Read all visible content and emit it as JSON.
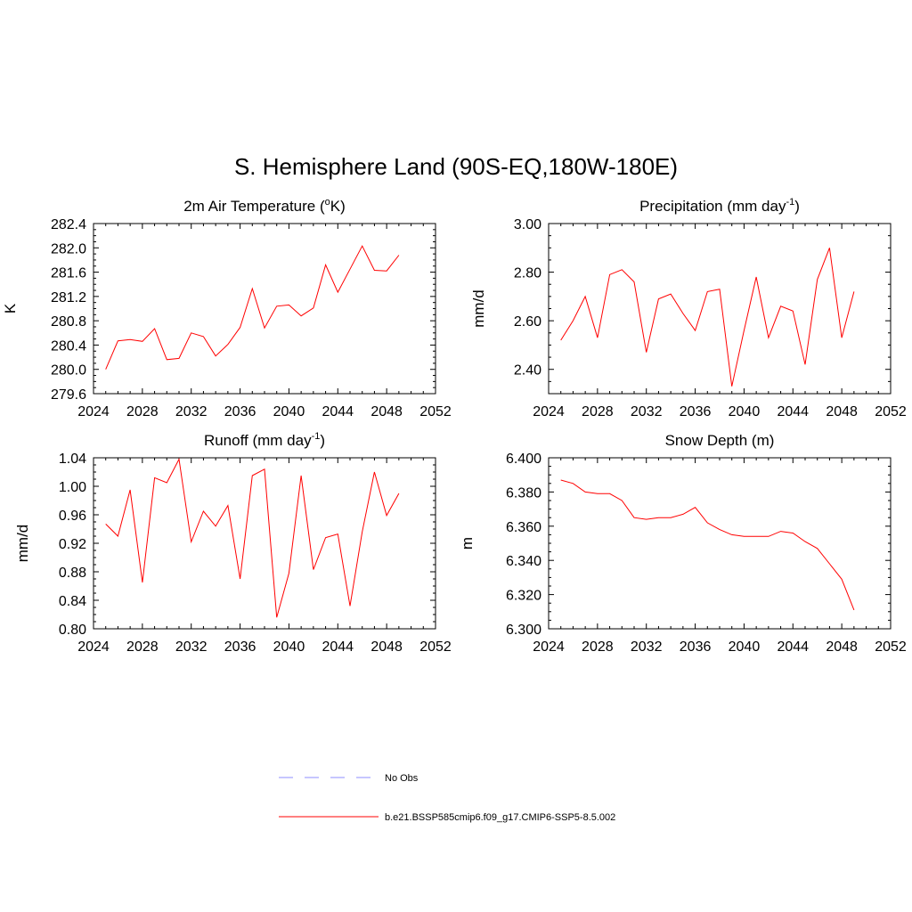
{
  "main_title": "S. Hemisphere Land (90S-EQ,180W-180E)",
  "chart_data": [
    {
      "type": "line",
      "title": "2m Air Temperature",
      "title_unit": "(",
      "title_sup": "o",
      "title_suffix": "K)",
      "ylabel": "K",
      "xlim": [
        2024,
        2052
      ],
      "ylim": [
        279.6,
        282.4
      ],
      "x_ticks": [
        "2024",
        "2028",
        "2032",
        "2036",
        "2040",
        "2044",
        "2048",
        "2052"
      ],
      "y_ticks": [
        "279.6",
        "280.0",
        "280.4",
        "280.8",
        "281.2",
        "281.6",
        "282.0",
        "282.4"
      ],
      "x": [
        2025,
        2026,
        2027,
        2028,
        2029,
        2030,
        2031,
        2032,
        2033,
        2034,
        2035,
        2036,
        2037,
        2038,
        2039,
        2040,
        2041,
        2042,
        2043,
        2044,
        2045,
        2046,
        2047,
        2048,
        2049
      ],
      "values": [
        280.0,
        280.47,
        280.49,
        280.46,
        280.67,
        280.16,
        280.18,
        280.6,
        280.54,
        280.22,
        280.41,
        280.69,
        281.33,
        280.68,
        281.04,
        281.06,
        280.88,
        281.01,
        281.72,
        281.27,
        281.65,
        282.03,
        281.63,
        281.62,
        281.88
      ]
    },
    {
      "type": "line",
      "title": "Precipitation (mm day",
      "title_sup": "-1",
      "title_suffix": ")",
      "ylabel": "mm/d",
      "xlim": [
        2024,
        2052
      ],
      "ylim": [
        2.3,
        3.0
      ],
      "x_ticks": [
        "2024",
        "2028",
        "2032",
        "2036",
        "2040",
        "2044",
        "2048",
        "2052"
      ],
      "y_ticks": [
        "2.40",
        "2.60",
        "2.80",
        "3.00"
      ],
      "y_tick_values": [
        2.4,
        2.6,
        2.8,
        3.0
      ],
      "x": [
        2025,
        2026,
        2027,
        2028,
        2029,
        2030,
        2031,
        2032,
        2033,
        2034,
        2035,
        2036,
        2037,
        2038,
        2039,
        2040,
        2041,
        2042,
        2043,
        2044,
        2045,
        2046,
        2047,
        2048,
        2049
      ],
      "values": [
        2.52,
        2.6,
        2.7,
        2.53,
        2.79,
        2.81,
        2.76,
        2.47,
        2.69,
        2.71,
        2.63,
        2.56,
        2.72,
        2.73,
        2.33,
        2.56,
        2.78,
        2.53,
        2.66,
        2.64,
        2.42,
        2.77,
        2.9,
        2.53,
        2.72
      ]
    },
    {
      "type": "line",
      "title": "Runoff (mm day",
      "title_sup": "-1",
      "title_suffix": ")",
      "ylabel": "mm/d",
      "xlim": [
        2024,
        2052
      ],
      "ylim": [
        0.8,
        1.04
      ],
      "x_ticks": [
        "2024",
        "2028",
        "2032",
        "2036",
        "2040",
        "2044",
        "2048",
        "2052"
      ],
      "y_ticks": [
        "0.80",
        "0.84",
        "0.88",
        "0.92",
        "0.96",
        "1.00",
        "1.04"
      ],
      "x": [
        2025,
        2026,
        2027,
        2028,
        2029,
        2030,
        2031,
        2032,
        2033,
        2034,
        2035,
        2036,
        2037,
        2038,
        2039,
        2040,
        2041,
        2042,
        2043,
        2044,
        2045,
        2046,
        2047,
        2048,
        2049
      ],
      "values": [
        0.947,
        0.93,
        0.995,
        0.865,
        1.012,
        1.005,
        1.038,
        0.922,
        0.965,
        0.944,
        0.973,
        0.87,
        1.015,
        1.024,
        0.816,
        0.878,
        1.015,
        0.883,
        0.928,
        0.933,
        0.832,
        0.936,
        1.02,
        0.959,
        0.99
      ]
    },
    {
      "type": "line",
      "title": "Snow Depth (m)",
      "title_sup": "",
      "title_suffix": "",
      "ylabel": "m",
      "xlim": [
        2024,
        2052
      ],
      "ylim": [
        6.3,
        6.4
      ],
      "x_ticks": [
        "2024",
        "2028",
        "2032",
        "2036",
        "2040",
        "2044",
        "2048",
        "2052"
      ],
      "y_ticks": [
        "6.300",
        "6.320",
        "6.340",
        "6.360",
        "6.380",
        "6.400"
      ],
      "x": [
        2025,
        2026,
        2027,
        2028,
        2029,
        2030,
        2031,
        2032,
        2033,
        2034,
        2035,
        2036,
        2037,
        2038,
        2039,
        2040,
        2041,
        2042,
        2043,
        2044,
        2045,
        2046,
        2047,
        2048,
        2049
      ],
      "values": [
        6.387,
        6.385,
        6.38,
        6.379,
        6.379,
        6.375,
        6.365,
        6.364,
        6.365,
        6.365,
        6.367,
        6.371,
        6.362,
        6.358,
        6.355,
        6.354,
        6.354,
        6.354,
        6.357,
        6.356,
        6.351,
        6.347,
        6.338,
        6.329,
        6.311
      ]
    }
  ],
  "legend": {
    "obs_label": "No Obs",
    "obs_color": "#a3a3ff",
    "model_label": "b.e21.BSSP585cmip6.f09_g17.CMIP6-SSP5-8.5.002",
    "model_color": "#ff0000"
  }
}
